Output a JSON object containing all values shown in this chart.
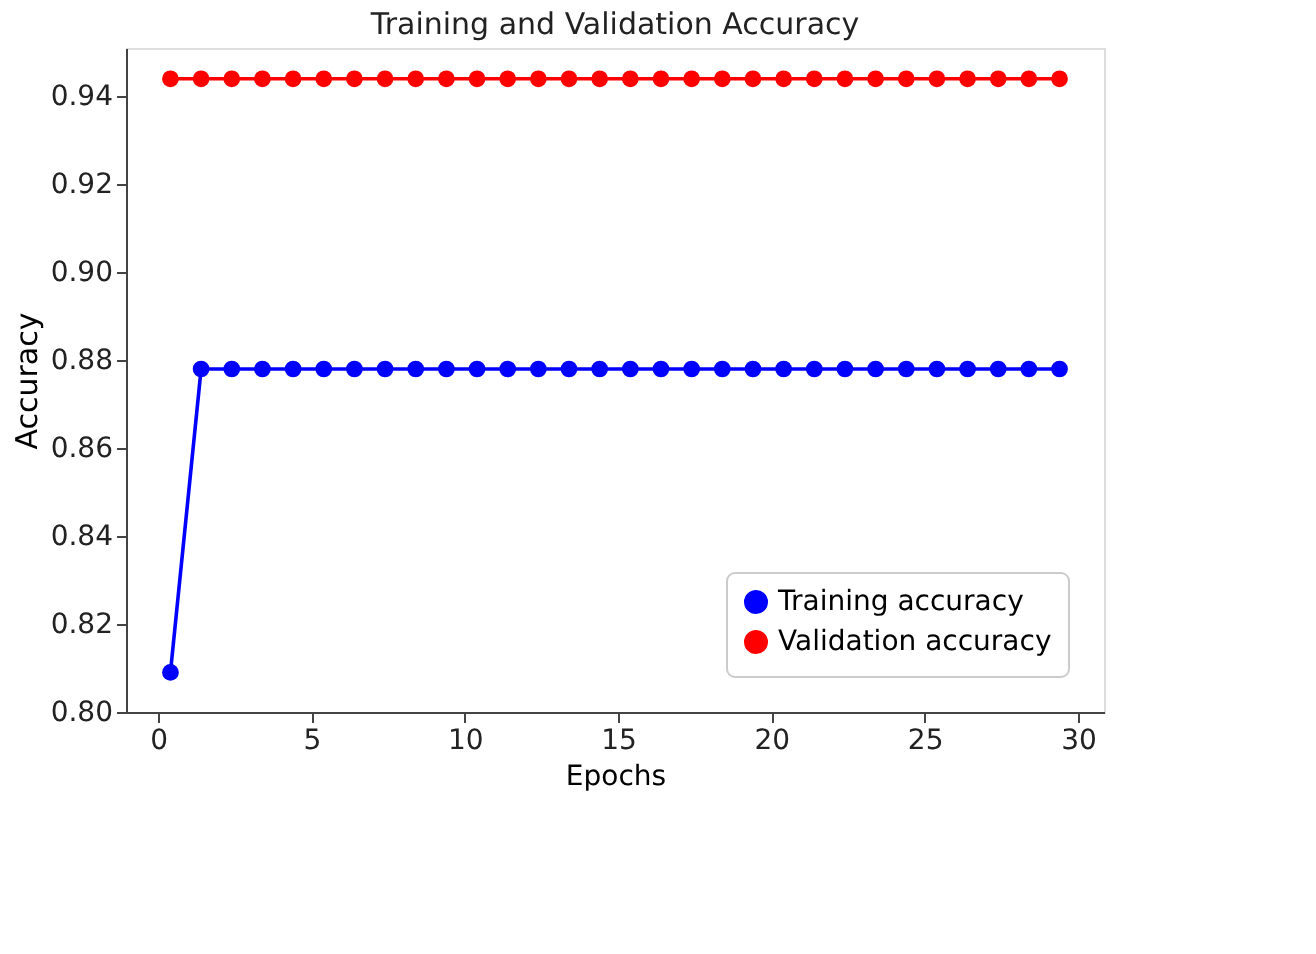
{
  "chart_data": {
    "type": "line",
    "title": "Training and Validation Accuracy",
    "xlabel": "Epochs",
    "ylabel": "Accuracy",
    "x": [
      0.4,
      1.4,
      2.4,
      3.4,
      4.4,
      5.4,
      6.4,
      7.4,
      8.4,
      9.4,
      10.4,
      11.4,
      12.4,
      13.4,
      14.4,
      15.4,
      16.4,
      17.4,
      18.4,
      19.4,
      20.4,
      21.4,
      22.4,
      23.4,
      24.4,
      25.4,
      26.4,
      27.4,
      28.4,
      29.4
    ],
    "series": [
      {
        "name": "Training accuracy",
        "color": "#0000ff",
        "values": [
          0.809,
          0.878,
          0.878,
          0.878,
          0.878,
          0.878,
          0.878,
          0.878,
          0.878,
          0.878,
          0.878,
          0.878,
          0.878,
          0.878,
          0.878,
          0.878,
          0.878,
          0.878,
          0.878,
          0.878,
          0.878,
          0.878,
          0.878,
          0.878,
          0.878,
          0.878,
          0.878,
          0.878,
          0.878,
          0.878
        ]
      },
      {
        "name": "Validation accuracy",
        "color": "#ff0000",
        "values": [
          0.944,
          0.944,
          0.944,
          0.944,
          0.944,
          0.944,
          0.944,
          0.944,
          0.944,
          0.944,
          0.944,
          0.944,
          0.944,
          0.944,
          0.944,
          0.944,
          0.944,
          0.944,
          0.944,
          0.944,
          0.944,
          0.944,
          0.944,
          0.944,
          0.944,
          0.944,
          0.944,
          0.944,
          0.944,
          0.944
        ]
      }
    ],
    "xlim": [
      -1.05,
      30.85
    ],
    "xticks": [
      0,
      5,
      10,
      15,
      20,
      25,
      30
    ],
    "ylim": [
      0.8,
      0.951
    ],
    "yticks": [
      {
        "value": 0.8,
        "label": "0.80"
      },
      {
        "value": 0.82,
        "label": "0.82"
      },
      {
        "value": 0.84,
        "label": "0.84"
      },
      {
        "value": 0.86,
        "label": "0.86"
      },
      {
        "value": 0.88,
        "label": "0.88"
      },
      {
        "value": 0.9,
        "label": "0.90"
      },
      {
        "value": 0.92,
        "label": "0.92"
      },
      {
        "value": 0.94,
        "label": "0.94"
      }
    ],
    "legend": "bottom right",
    "grid": false,
    "marker": "circle",
    "line_style": "solid"
  }
}
